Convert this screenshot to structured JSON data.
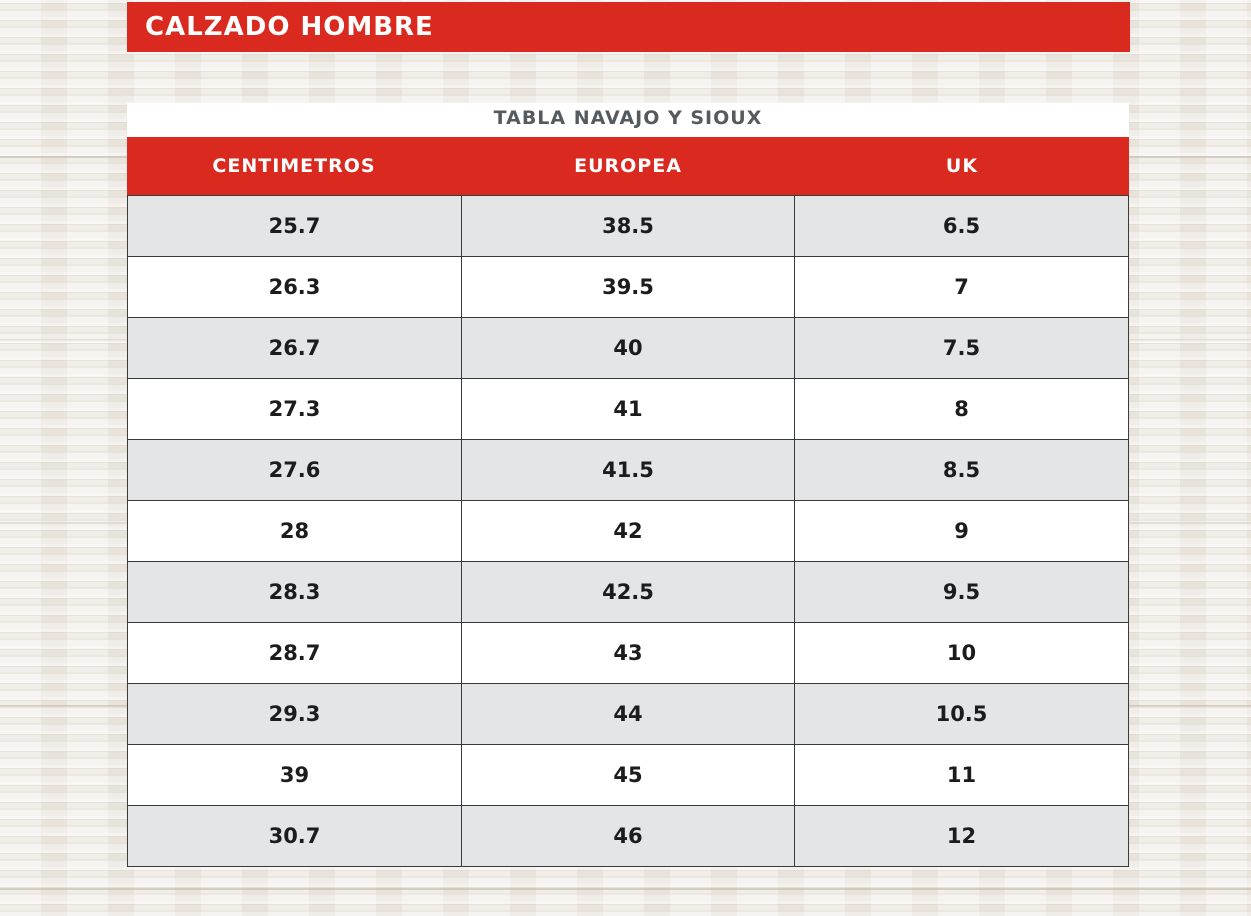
{
  "header": {
    "title": "CALZADO HOMBRE"
  },
  "table": {
    "title": "TABLA NAVAJO Y SIOUX",
    "columns": [
      "CENTIMETROS",
      "EUROPEA",
      "UK"
    ],
    "rows": [
      [
        "25.7",
        "38.5",
        "6.5"
      ],
      [
        "26.3",
        "39.5",
        "7"
      ],
      [
        "26.7",
        "40",
        "7.5"
      ],
      [
        "27.3",
        "41",
        "8"
      ],
      [
        "27.6",
        "41.5",
        "8.5"
      ],
      [
        "28",
        "42",
        "9"
      ],
      [
        "28.3",
        "42.5",
        "9.5"
      ],
      [
        "28.7",
        "43",
        "10"
      ],
      [
        "29.3",
        "44",
        "10.5"
      ],
      [
        "39",
        "45",
        "11"
      ],
      [
        "30.7",
        "46",
        "12"
      ]
    ]
  },
  "colors": {
    "accent_red": "#da2a1f",
    "row_shade": "#e4e5e7",
    "row_plain": "#ffffff",
    "title_text": "#555a5e"
  }
}
